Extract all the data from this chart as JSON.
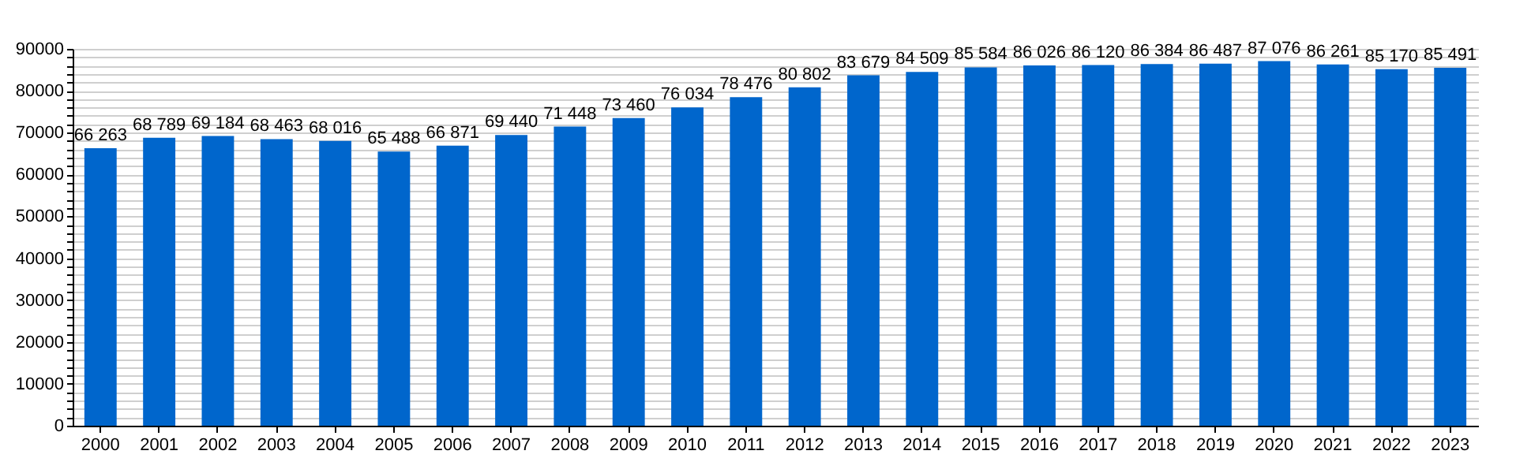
{
  "chart_data": {
    "type": "bar",
    "categories": [
      "2000",
      "2001",
      "2002",
      "2003",
      "2004",
      "2005",
      "2006",
      "2007",
      "2008",
      "2009",
      "2010",
      "2011",
      "2012",
      "2013",
      "2014",
      "2015",
      "2016",
      "2017",
      "2018",
      "2019",
      "2020",
      "2021",
      "2022",
      "2023"
    ],
    "values": [
      66263,
      68789,
      69184,
      68463,
      68016,
      65488,
      66871,
      69440,
      71448,
      73460,
      76034,
      78476,
      80802,
      83679,
      84509,
      85584,
      86026,
      86120,
      86384,
      86487,
      87076,
      86261,
      85170,
      85491
    ],
    "value_labels": [
      "66 263",
      "68 789",
      "69 184",
      "68 463",
      "68 016",
      "65 488",
      "66 871",
      "69 440",
      "71 448",
      "73 460",
      "76 034",
      "78 476",
      "80 802",
      "83 679",
      "84 509",
      "85 584",
      "86 026",
      "86 120",
      "86 384",
      "86 487",
      "87 076",
      "86 261",
      "85 170",
      "85 491"
    ],
    "color": "#0066cc",
    "ylim": [
      0,
      90000
    ],
    "yticks": [
      0,
      {
        "value": 2000,
        "label": null
      },
      {
        "value": 4000,
        "label": null
      },
      {
        "value": 6000,
        "label": null
      },
      {
        "value": 8000,
        "label": null
      },
      10000,
      {
        "value": 12000,
        "label": null
      },
      {
        "value": 14000,
        "label": null
      },
      {
        "value": 16000,
        "label": null
      },
      {
        "value": 18000,
        "label": null
      },
      20000,
      {
        "value": 22000,
        "label": null
      },
      {
        "value": 24000,
        "label": null
      },
      {
        "value": 26000,
        "label": null
      },
      {
        "value": 28000,
        "label": null
      },
      30000,
      {
        "value": 32000,
        "label": null
      },
      {
        "value": 34000,
        "label": null
      },
      {
        "value": 36000,
        "label": null
      },
      {
        "value": 38000,
        "label": null
      },
      40000,
      {
        "value": 42000,
        "label": null
      },
      {
        "value": 44000,
        "label": null
      },
      {
        "value": 46000,
        "label": null
      },
      {
        "value": 48000,
        "label": null
      },
      50000,
      {
        "value": 52000,
        "label": null
      },
      {
        "value": 54000,
        "label": null
      },
      {
        "value": 56000,
        "label": null
      },
      {
        "value": 58000,
        "label": null
      },
      60000,
      {
        "value": 62000,
        "label": null
      },
      {
        "value": 64000,
        "label": null
      },
      {
        "value": 66000,
        "label": null
      },
      {
        "value": 68000,
        "label": null
      },
      70000,
      {
        "value": 72000,
        "label": null
      },
      {
        "value": 74000,
        "label": null
      },
      {
        "value": 76000,
        "label": null
      },
      {
        "value": 78000,
        "label": null
      },
      80000,
      {
        "value": 82000,
        "label": null
      },
      {
        "value": 84000,
        "label": null
      },
      {
        "value": 86000,
        "label": null
      },
      {
        "value": 88000,
        "label": null
      },
      90000
    ],
    "grid": "y"
  }
}
